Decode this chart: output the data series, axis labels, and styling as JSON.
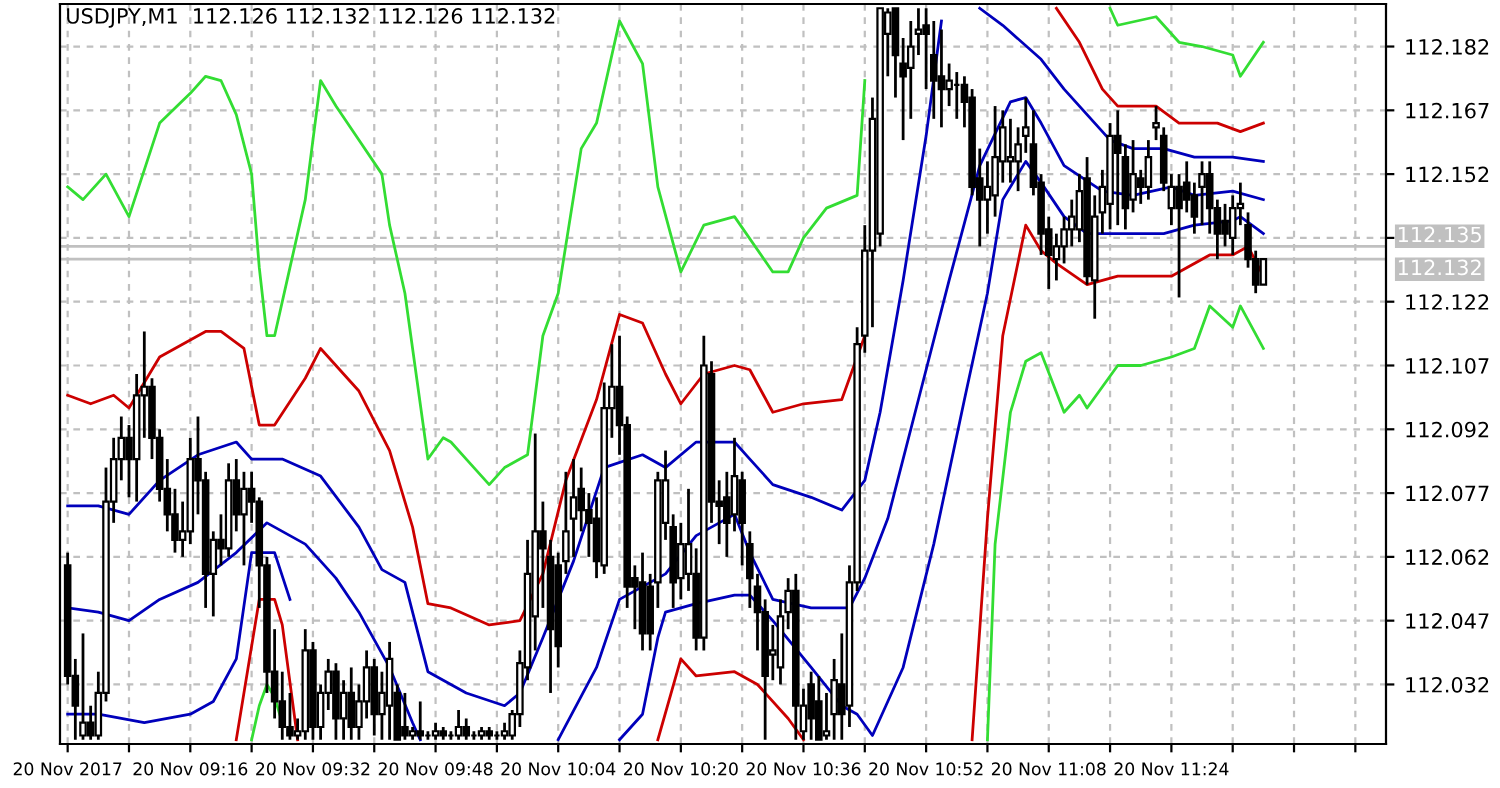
{
  "chart_data": {
    "type": "candlestick",
    "title": "USDJPY,M1  112.126 112.132 112.126 112.132",
    "color": "#000000",
    "x": [
      "2017-11-20T09:00",
      "2017-11-20T09:01",
      "2017-11-20T09:02",
      "2017-11-20T09:03",
      "2017-11-20T09:04",
      "2017-11-20T09:05",
      "2017-11-20T09:06",
      "2017-11-20T09:07",
      "2017-11-20T09:08",
      "2017-11-20T09:09",
      "2017-11-20T09:10",
      "2017-11-20T09:11",
      "2017-11-20T09:12",
      "2017-11-20T09:13",
      "2017-11-20T09:14",
      "2017-11-20T09:15",
      "2017-11-20T09:16",
      "2017-11-20T09:17",
      "2017-11-20T09:18",
      "2017-11-20T09:19",
      "2017-11-20T09:20",
      "2017-11-20T09:21",
      "2017-11-20T09:22",
      "2017-11-20T09:23",
      "2017-11-20T09:24",
      "2017-11-20T09:25",
      "2017-11-20T09:26",
      "2017-11-20T09:27",
      "2017-11-20T09:28",
      "2017-11-20T09:29",
      "2017-11-20T09:30",
      "2017-11-20T09:31",
      "2017-11-20T09:32",
      "2017-11-20T09:33",
      "2017-11-20T09:34",
      "2017-11-20T09:35",
      "2017-11-20T09:36",
      "2017-11-20T09:37",
      "2017-11-20T09:38",
      "2017-11-20T09:39",
      "2017-11-20T09:40",
      "2017-11-20T09:41",
      "2017-11-20T09:42",
      "2017-11-20T09:43",
      "2017-11-20T09:44",
      "2017-11-20T09:45",
      "2017-11-20T09:46",
      "2017-11-20T09:47",
      "2017-11-20T09:48",
      "2017-11-20T09:49",
      "2017-11-20T09:50",
      "2017-11-20T09:51",
      "2017-11-20T09:52",
      "2017-11-20T09:53",
      "2017-11-20T09:54",
      "2017-11-20T09:55",
      "2017-11-20T09:56",
      "2017-11-20T09:57",
      "2017-11-20T09:58",
      "2017-11-20T09:59",
      "2017-11-20T10:00",
      "2017-11-20T10:01",
      "2017-11-20T10:02",
      "2017-11-20T10:03",
      "2017-11-20T10:04",
      "2017-11-20T10:05",
      "2017-11-20T10:06",
      "2017-11-20T10:07",
      "2017-11-20T10:08",
      "2017-11-20T10:09",
      "2017-11-20T10:10",
      "2017-11-20T10:11",
      "2017-11-20T10:12",
      "2017-11-20T10:13",
      "2017-11-20T10:14",
      "2017-11-20T10:15",
      "2017-11-20T10:16",
      "2017-11-20T10:17",
      "2017-11-20T10:18",
      "2017-11-20T10:19",
      "2017-11-20T10:20",
      "2017-11-20T10:21",
      "2017-11-20T10:22",
      "2017-11-20T10:23",
      "2017-11-20T10:24",
      "2017-11-20T10:25",
      "2017-11-20T10:26",
      "2017-11-20T10:27",
      "2017-11-20T10:28",
      "2017-11-20T10:29",
      "2017-11-20T10:30",
      "2017-11-20T10:31",
      "2017-11-20T10:32",
      "2017-11-20T10:33",
      "2017-11-20T10:34",
      "2017-11-20T10:35",
      "2017-11-20T10:36",
      "2017-11-20T10:37",
      "2017-11-20T10:38",
      "2017-11-20T10:39",
      "2017-11-20T10:40",
      "2017-11-20T10:41",
      "2017-11-20T10:42",
      "2017-11-20T10:43",
      "2017-11-20T10:44",
      "2017-11-20T10:45",
      "2017-11-20T10:46",
      "2017-11-20T10:47",
      "2017-11-20T10:48",
      "2017-11-20T10:49",
      "2017-11-20T10:50",
      "2017-11-20T10:51",
      "2017-11-20T10:52",
      "2017-11-20T10:53",
      "2017-11-20T10:54",
      "2017-11-20T10:55",
      "2017-11-20T10:56",
      "2017-11-20T10:57",
      "2017-11-20T10:58",
      "2017-11-20T10:59",
      "2017-11-20T11:00",
      "2017-11-20T11:01",
      "2017-11-20T11:02",
      "2017-11-20T11:03",
      "2017-11-20T11:04",
      "2017-11-20T11:05",
      "2017-11-20T11:06",
      "2017-11-20T11:07",
      "2017-11-20T11:08",
      "2017-11-20T11:09",
      "2017-11-20T11:10",
      "2017-11-20T11:11",
      "2017-11-20T11:12",
      "2017-11-20T11:13",
      "2017-11-20T11:14",
      "2017-11-20T11:15",
      "2017-11-20T11:16",
      "2017-11-20T11:17",
      "2017-11-20T11:18",
      "2017-11-20T11:19",
      "2017-11-20T11:20",
      "2017-11-20T11:21",
      "2017-11-20T11:22",
      "2017-11-20T11:23",
      "2017-11-20T11:24",
      "2017-11-20T11:25",
      "2017-11-20T11:26",
      "2017-11-20T11:27",
      "2017-11-20T11:28",
      "2017-11-20T11:29",
      "2017-11-20T11:30",
      "2017-11-20T11:31",
      "2017-11-20T11:32",
      "2017-11-20T11:33",
      "2017-11-20T11:34",
      "2017-11-20T11:35",
      "2017-11-20T11:36"
    ],
    "ohlc": [
      [
        112.06,
        112.063,
        112.032,
        112.034
      ],
      [
        112.034,
        112.038,
        112.019,
        112.027
      ],
      [
        112.02,
        112.044,
        112.019,
        112.023
      ],
      [
        112.023,
        112.027,
        112.019,
        112.02
      ],
      [
        112.02,
        112.035,
        112.019,
        112.03
      ],
      [
        112.03,
        112.083,
        112.028,
        112.075
      ],
      [
        112.075,
        112.09,
        112.07,
        112.085
      ],
      [
        112.085,
        112.095,
        112.08,
        112.09
      ],
      [
        112.09,
        112.093,
        112.076,
        112.085
      ],
      [
        112.085,
        112.105,
        112.075,
        112.1
      ],
      [
        112.1,
        112.115,
        112.09,
        112.102
      ],
      [
        112.102,
        112.104,
        112.085,
        112.09
      ],
      [
        112.09,
        112.092,
        112.075,
        112.078
      ],
      [
        112.078,
        112.085,
        112.068,
        112.072
      ],
      [
        112.072,
        112.078,
        112.063,
        112.066
      ],
      [
        112.066,
        112.075,
        112.062,
        112.068
      ],
      [
        112.068,
        112.09,
        112.065,
        112.085
      ],
      [
        112.085,
        112.095,
        112.072,
        112.08
      ],
      [
        112.08,
        112.082,
        112.05,
        112.058
      ],
      [
        112.058,
        112.068,
        112.048,
        112.066
      ],
      [
        112.066,
        112.072,
        112.06,
        112.064
      ],
      [
        112.064,
        112.084,
        112.062,
        112.08
      ],
      [
        112.08,
        112.085,
        112.068,
        112.072
      ],
      [
        112.072,
        112.082,
        112.06,
        112.078
      ],
      [
        112.078,
        112.082,
        112.07,
        112.075
      ],
      [
        112.075,
        112.076,
        112.05,
        112.06
      ],
      [
        112.06,
        112.062,
        112.03,
        112.035
      ],
      [
        112.035,
        112.045,
        112.024,
        112.028
      ],
      [
        112.028,
        112.035,
        112.019,
        112.022
      ],
      [
        112.022,
        112.03,
        112.019,
        112.02
      ],
      [
        112.02,
        112.024,
        112.019,
        112.021
      ],
      [
        112.021,
        112.045,
        112.019,
        112.04
      ],
      [
        112.04,
        112.042,
        112.019,
        112.022
      ],
      [
        112.022,
        112.032,
        112.019,
        112.03
      ],
      [
        112.03,
        112.038,
        112.026,
        112.035
      ],
      [
        112.035,
        112.037,
        112.019,
        112.024
      ],
      [
        112.024,
        112.033,
        112.019,
        112.03
      ],
      [
        112.03,
        112.036,
        112.019,
        112.022
      ],
      [
        112.022,
        112.032,
        112.019,
        112.028
      ],
      [
        112.028,
        112.04,
        112.024,
        112.036
      ],
      [
        112.036,
        112.038,
        112.02,
        112.025
      ],
      [
        112.025,
        112.035,
        112.019,
        112.03
      ],
      [
        112.027,
        112.042,
        112.019,
        112.038
      ],
      [
        112.03,
        112.032,
        112.019,
        112.019
      ],
      [
        112.022,
        112.03,
        112.019,
        112.02
      ],
      [
        112.02,
        112.022,
        112.019,
        112.021
      ],
      [
        112.021,
        112.028,
        112.019,
        112.02
      ],
      [
        112.02,
        112.021,
        112.019,
        112.02
      ],
      [
        112.02,
        112.023,
        112.019,
        112.021
      ],
      [
        112.021,
        112.022,
        112.019,
        112.02
      ],
      [
        112.02,
        112.021,
        112.019,
        112.02
      ],
      [
        112.02,
        112.026,
        112.019,
        112.022
      ],
      [
        112.022,
        112.024,
        112.019,
        112.02
      ],
      [
        112.02,
        112.021,
        112.019,
        112.02
      ],
      [
        112.02,
        112.022,
        112.019,
        112.021
      ],
      [
        112.021,
        112.022,
        112.019,
        112.02
      ],
      [
        112.02,
        112.021,
        112.019,
        112.02
      ],
      [
        112.02,
        112.023,
        112.019,
        112.021
      ],
      [
        112.02,
        112.026,
        112.019,
        112.025
      ],
      [
        112.025,
        112.04,
        112.022,
        112.037
      ],
      [
        112.036,
        112.066,
        112.033,
        112.058
      ],
      [
        112.048,
        112.091,
        112.04,
        112.068
      ],
      [
        112.068,
        112.075,
        112.05,
        112.064
      ],
      [
        112.062,
        112.066,
        112.03,
        112.045
      ],
      [
        112.06,
        112.063,
        112.036,
        112.041
      ],
      [
        112.061,
        112.082,
        112.058,
        112.068
      ],
      [
        112.071,
        112.085,
        112.062,
        112.076
      ],
      [
        112.078,
        112.083,
        112.068,
        112.073
      ],
      [
        112.073,
        112.077,
        112.062,
        112.07
      ],
      [
        112.071,
        112.076,
        112.057,
        112.061
      ],
      [
        112.06,
        112.103,
        112.058,
        112.097
      ],
      [
        112.097,
        112.112,
        112.09,
        112.102
      ],
      [
        112.102,
        112.114,
        112.086,
        112.093
      ],
      [
        112.093,
        112.095,
        112.05,
        112.055
      ],
      [
        112.057,
        112.06,
        112.045,
        112.055
      ],
      [
        112.056,
        112.063,
        112.04,
        112.044
      ],
      [
        112.055,
        112.058,
        112.04,
        112.044
      ],
      [
        112.056,
        112.082,
        112.05,
        112.08
      ],
      [
        112.07,
        112.087,
        112.066,
        112.08
      ],
      [
        112.069,
        112.072,
        112.05,
        112.056
      ],
      [
        112.057,
        112.07,
        112.052,
        112.065
      ],
      [
        112.058,
        112.078,
        112.054,
        112.065
      ],
      [
        112.058,
        112.064,
        112.04,
        112.043
      ],
      [
        112.043,
        112.114,
        112.04,
        112.107
      ],
      [
        112.105,
        112.108,
        112.07,
        112.075
      ],
      [
        112.075,
        112.08,
        112.065,
        112.074
      ],
      [
        112.076,
        112.082,
        112.062,
        112.07
      ],
      [
        112.072,
        112.09,
        112.068,
        112.081
      ],
      [
        112.08,
        112.082,
        112.06,
        112.07
      ],
      [
        112.065,
        112.068,
        112.05,
        112.057
      ],
      [
        112.055,
        112.058,
        112.04,
        112.049
      ],
      [
        112.049,
        112.052,
        112.019,
        112.034
      ],
      [
        112.039,
        112.046,
        112.033,
        112.04
      ],
      [
        112.036,
        112.052,
        112.032,
        112.048
      ],
      [
        112.049,
        112.057,
        112.045,
        112.054
      ],
      [
        112.054,
        112.058,
        112.019,
        112.027
      ],
      [
        112.021,
        112.031,
        112.019,
        112.027
      ],
      [
        112.032,
        112.035,
        112.019,
        112.024
      ],
      [
        112.028,
        112.034,
        112.019,
        112.019
      ],
      [
        112.02,
        112.03,
        112.019,
        112.021
      ],
      [
        112.025,
        112.038,
        112.019,
        112.033
      ],
      [
        112.032,
        112.044,
        112.019,
        112.025
      ],
      [
        112.027,
        112.06,
        112.022,
        112.056
      ],
      [
        112.056,
        112.116,
        112.054,
        112.112
      ],
      [
        112.114,
        112.14,
        112.11,
        112.134
      ],
      [
        112.134,
        112.17,
        112.116,
        112.165
      ],
      [
        112.138,
        112.191,
        112.135,
        112.191
      ],
      [
        112.185,
        112.191,
        112.175,
        112.19
      ],
      [
        112.191,
        112.191,
        112.17,
        112.18
      ],
      [
        112.178,
        112.184,
        112.16,
        112.175
      ],
      [
        112.177,
        112.188,
        112.165,
        112.182
      ],
      [
        112.185,
        112.191,
        112.18,
        112.186
      ],
      [
        112.187,
        112.191,
        112.172,
        112.185
      ],
      [
        112.18,
        112.188,
        112.165,
        112.174
      ],
      [
        112.175,
        112.186,
        112.163,
        112.172
      ],
      [
        112.172,
        112.178,
        112.168,
        112.174
      ],
      [
        112.173,
        112.176,
        112.165,
        112.173
      ],
      [
        112.173,
        112.175,
        112.163,
        112.169
      ],
      [
        112.17,
        112.172,
        112.147,
        112.149
      ],
      [
        112.151,
        112.158,
        112.135,
        112.146
      ],
      [
        112.146,
        112.155,
        112.138,
        112.149
      ],
      [
        112.147,
        112.168,
        112.142,
        112.156
      ],
      [
        112.155,
        112.167,
        112.15,
        112.163
      ],
      [
        112.155,
        112.165,
        112.15,
        112.156
      ],
      [
        112.155,
        112.163,
        112.148,
        112.159
      ],
      [
        112.161,
        112.17,
        112.157,
        112.163
      ],
      [
        112.159,
        112.167,
        112.147,
        112.149
      ],
      [
        112.15,
        112.152,
        112.133,
        112.138
      ],
      [
        112.139,
        112.142,
        112.125,
        112.133
      ],
      [
        112.132,
        112.138,
        112.127,
        112.135
      ],
      [
        112.135,
        112.142,
        112.131,
        112.139
      ],
      [
        112.139,
        112.146,
        112.135,
        112.142
      ],
      [
        112.139,
        112.152,
        112.136,
        112.148
      ],
      [
        112.151,
        112.156,
        112.126,
        112.128
      ],
      [
        112.127,
        112.147,
        112.118,
        112.142
      ],
      [
        112.143,
        112.153,
        112.138,
        112.149
      ],
      [
        112.145,
        112.164,
        112.139,
        112.161
      ],
      [
        112.161,
        112.167,
        112.14,
        112.157
      ],
      [
        112.156,
        112.159,
        112.139,
        112.144
      ],
      [
        112.146,
        112.16,
        112.143,
        112.152
      ],
      [
        112.151,
        112.153,
        112.145,
        112.149
      ],
      [
        112.149,
        112.16,
        112.146,
        112.156
      ],
      [
        112.163,
        112.168,
        112.16,
        112.164
      ],
      [
        112.161,
        112.163,
        112.148,
        112.15
      ],
      [
        112.144,
        112.152,
        112.14,
        112.149
      ],
      [
        112.149,
        112.152,
        112.123,
        112.144
      ],
      [
        112.15,
        112.155,
        112.143,
        112.146
      ],
      [
        112.147,
        112.15,
        112.138,
        112.142
      ],
      [
        112.149,
        112.155,
        112.14,
        112.152
      ],
      [
        112.152,
        112.155,
        112.138,
        112.144
      ],
      [
        112.144,
        112.146,
        112.132,
        112.138
      ],
      [
        112.141,
        112.145,
        112.135,
        112.138
      ],
      [
        112.137,
        112.147,
        112.133,
        112.144
      ],
      [
        112.144,
        112.15,
        112.14,
        112.145
      ],
      [
        112.14,
        112.143,
        112.13,
        112.132
      ],
      [
        112.132,
        112.134,
        112.124,
        112.126
      ],
      [
        112.126,
        112.132,
        112.126,
        112.132
      ]
    ],
    "series": [
      {
        "type": "line",
        "color": "#33dd33",
        "x": [
          "2017-11-20T09:00",
          "2017-11-20T09:02",
          "2017-11-20T09:05",
          "2017-11-20T09:08",
          "2017-11-20T09:12",
          "2017-11-20T09:16",
          "2017-11-20T09:18",
          "2017-11-20T09:20",
          "2017-11-20T09:22",
          "2017-11-20T09:24",
          "2017-11-20T09:25",
          "2017-11-20T09:26",
          "2017-11-20T09:27",
          "2017-11-20T09:29",
          "2017-11-20T09:31",
          "2017-11-20T09:33",
          "2017-11-20T09:35",
          "2017-11-20T09:38",
          "2017-11-20T09:41",
          "2017-11-20T09:42",
          "2017-11-20T09:44",
          "2017-11-20T09:47",
          "2017-11-20T09:49",
          "2017-11-20T09:50",
          "2017-11-20T09:52",
          "2017-11-20T09:55",
          "2017-11-20T09:57",
          "2017-11-20T10:00",
          "2017-11-20T10:02",
          "2017-11-20T10:04",
          "2017-11-20T10:07",
          "2017-11-20T10:09",
          "2017-11-20T10:12",
          "2017-11-20T10:15",
          "2017-11-20T10:17",
          "2017-11-20T10:20",
          "2017-11-20T10:23",
          "2017-11-20T10:27",
          "2017-11-20T10:32",
          "2017-11-20T10:34",
          "2017-11-20T10:36",
          "2017-11-20T10:39",
          "2017-11-20T10:43",
          "2017-11-20T10:44",
          "2017-11-20T10:54",
          "2017-11-20T11:16",
          "2017-11-20T11:17",
          "2017-11-20T11:22",
          "2017-11-20T11:25",
          "2017-11-20T11:28",
          "2017-11-20T11:32",
          "2017-11-20T11:33",
          "2017-11-20T11:36"
        ],
        "values": [
          112.149,
          112.146,
          112.152,
          112.142,
          112.164,
          112.171,
          112.175,
          112.174,
          112.166,
          112.152,
          112.13,
          112.114,
          112.114,
          112.13,
          112.146,
          112.174,
          112.168,
          112.16,
          112.152,
          112.14,
          112.124,
          112.085,
          112.09,
          112.089,
          112.085,
          112.079,
          112.083,
          112.086,
          112.114,
          112.124,
          112.158,
          112.164,
          112.188,
          112.178,
          112.149,
          112.129,
          112.14,
          112.142,
          112.129,
          112.129,
          112.137,
          112.144,
          112.147,
          112.174,
          null,
          112.191,
          112.187,
          112.189,
          112.183,
          112.182,
          112.18,
          112.175,
          112.183
        ]
      },
      {
        "type": "line",
        "color": "#33dd33",
        "x": [
          "2017-11-20T09:24",
          "2017-11-20T09:25",
          "2017-11-20T09:26",
          "2017-11-20T09:27",
          "2017-11-20T09:28",
          "2017-11-20T10:00",
          "2017-11-20T11:00",
          "2017-11-20T11:01",
          "2017-11-20T11:03",
          "2017-11-20T11:05",
          "2017-11-20T11:07",
          "2017-11-20T11:10",
          "2017-11-20T11:12",
          "2017-11-20T11:13",
          "2017-11-20T11:17",
          "2017-11-20T11:20",
          "2017-11-20T11:24",
          "2017-11-20T11:27",
          "2017-11-20T11:29",
          "2017-11-20T11:32",
          "2017-11-20T11:33",
          "2017-11-20T11:36"
        ],
        "values": [
          112.019,
          112.027,
          112.032,
          112.029,
          112.023,
          null,
          112.019,
          112.065,
          112.096,
          112.108,
          112.11,
          112.096,
          112.1,
          112.097,
          112.107,
          112.107,
          112.109,
          112.111,
          112.121,
          112.116,
          112.121,
          112.111
        ]
      },
      {
        "type": "line",
        "color": "#cc0000",
        "x": [
          "2017-11-20T09:00",
          "2017-11-20T09:03",
          "2017-11-20T09:06",
          "2017-11-20T09:08",
          "2017-11-20T09:12",
          "2017-11-20T09:18",
          "2017-11-20T09:20",
          "2017-11-20T09:23",
          "2017-11-20T09:25",
          "2017-11-20T09:27",
          "2017-11-20T09:31",
          "2017-11-20T09:33",
          "2017-11-20T09:38",
          "2017-11-20T09:42",
          "2017-11-20T09:45",
          "2017-11-20T09:47",
          "2017-11-20T09:50",
          "2017-11-20T09:55",
          "2017-11-20T09:59",
          "2017-11-20T10:02",
          "2017-11-20T10:05",
          "2017-11-20T10:09",
          "2017-11-20T10:12",
          "2017-11-20T10:15",
          "2017-11-20T10:18",
          "2017-11-20T10:20",
          "2017-11-20T10:23",
          "2017-11-20T10:27",
          "2017-11-20T10:29",
          "2017-11-20T10:32",
          "2017-11-20T10:36",
          "2017-11-20T10:41",
          "2017-11-20T10:44",
          "2017-11-20T10:45",
          "2017-11-20T10:46",
          "2017-11-20T10:55",
          "2017-11-20T11:09",
          "2017-11-20T11:12",
          "2017-11-20T11:15",
          "2017-11-20T11:17",
          "2017-11-20T11:22",
          "2017-11-20T11:25",
          "2017-11-20T11:30",
          "2017-11-20T11:33",
          "2017-11-20T11:36"
        ],
        "values": [
          112.1,
          112.098,
          112.1,
          112.097,
          112.109,
          112.115,
          112.115,
          112.111,
          112.093,
          112.093,
          112.104,
          112.111,
          112.101,
          112.087,
          112.069,
          112.051,
          112.05,
          112.046,
          112.047,
          112.058,
          112.08,
          112.099,
          112.119,
          112.117,
          112.105,
          112.098,
          112.105,
          112.107,
          112.106,
          112.096,
          112.098,
          112.099,
          112.114,
          null,
          null,
          null,
          112.191,
          112.183,
          112.172,
          112.168,
          112.168,
          112.164,
          112.164,
          112.162,
          112.164
        ]
      },
      {
        "type": "line",
        "color": "#cc0000",
        "x": [
          "2017-11-20T09:22",
          "2017-11-20T09:25",
          "2017-11-20T09:27",
          "2017-11-20T09:28",
          "2017-11-20T09:30",
          "2017-11-20T09:45",
          "2017-11-20T10:17",
          "2017-11-20T10:20",
          "2017-11-20T10:22",
          "2017-11-20T10:27",
          "2017-11-20T10:30",
          "2017-11-20T10:34",
          "2017-11-20T10:36",
          "2017-11-20T10:50",
          "2017-11-20T10:58",
          "2017-11-20T11:00",
          "2017-11-20T11:02",
          "2017-11-20T11:05",
          "2017-11-20T11:07",
          "2017-11-20T11:09",
          "2017-11-20T11:13",
          "2017-11-20T11:17",
          "2017-11-20T11:24",
          "2017-11-20T11:29",
          "2017-11-20T11:32",
          "2017-11-20T11:34",
          "2017-11-20T11:36"
        ],
        "values": [
          112.019,
          112.052,
          112.052,
          112.046,
          112.019,
          null,
          112.019,
          112.038,
          112.034,
          112.035,
          112.032,
          112.024,
          112.019,
          null,
          112.019,
          112.071,
          112.114,
          112.14,
          112.134,
          112.131,
          112.126,
          112.128,
          112.128,
          112.133,
          112.133,
          112.135,
          112.128
        ]
      },
      {
        "type": "line",
        "color": "#0000bb",
        "x": [
          "2017-11-20T09:00",
          "2017-11-20T09:04",
          "2017-11-20T09:08",
          "2017-11-20T09:12",
          "2017-11-20T09:17",
          "2017-11-20T09:22",
          "2017-11-20T09:24",
          "2017-11-20T09:28",
          "2017-11-20T09:33",
          "2017-11-20T09:38",
          "2017-11-20T09:41",
          "2017-11-20T09:44",
          "2017-11-20T09:47",
          "2017-11-20T09:52",
          "2017-11-20T09:57",
          "2017-11-20T09:59",
          "2017-11-20T10:02",
          "2017-11-20T10:06",
          "2017-11-20T10:10",
          "2017-11-20T10:15",
          "2017-11-20T10:18",
          "2017-11-20T10:22",
          "2017-11-20T10:27",
          "2017-11-20T10:29",
          "2017-11-20T10:32",
          "2017-11-20T10:37",
          "2017-11-20T10:41",
          "2017-11-20T10:44",
          "2017-11-20T10:46",
          "2017-11-20T10:49",
          "2017-11-20T10:52",
          "2017-11-20T10:54",
          "2017-11-20T10:56",
          "2017-11-20T10:59",
          "2017-11-20T11:02",
          "2017-11-20T11:07",
          "2017-11-20T11:10",
          "2017-11-20T11:12",
          "2017-11-20T11:16",
          "2017-11-20T11:19",
          "2017-11-20T11:23",
          "2017-11-20T11:27",
          "2017-11-20T11:32",
          "2017-11-20T11:36"
        ],
        "values": [
          112.074,
          112.074,
          112.072,
          112.08,
          112.086,
          112.089,
          112.085,
          112.085,
          112.081,
          112.069,
          112.059,
          112.056,
          112.035,
          112.03,
          112.027,
          112.03,
          112.043,
          112.061,
          112.083,
          112.086,
          112.083,
          112.089,
          112.089,
          112.085,
          112.079,
          112.076,
          112.073,
          112.08,
          112.096,
          112.127,
          112.161,
          112.188,
          null,
          112.191,
          112.187,
          112.179,
          112.172,
          112.168,
          112.16,
          112.158,
          112.158,
          112.156,
          112.156,
          112.155
        ]
      },
      {
        "type": "line",
        "color": "#0000bb",
        "x": [
          "2017-11-20T09:00",
          "2017-11-20T09:04",
          "2017-11-20T09:08",
          "2017-11-20T09:12",
          "2017-11-20T09:17",
          "2017-11-20T09:22",
          "2017-11-20T09:26",
          "2017-11-20T09:31",
          "2017-11-20T09:35",
          "2017-11-20T09:38",
          "2017-11-20T09:42",
          "2017-11-20T09:45",
          "2017-11-20T09:46",
          "2017-11-20T10:00",
          "2017-11-20T10:04",
          "2017-11-20T10:09",
          "2017-11-20T10:12",
          "2017-11-20T10:15",
          "2017-11-20T10:18",
          "2017-11-20T10:22",
          "2017-11-20T10:27",
          "2017-11-20T10:29",
          "2017-11-20T10:32",
          "2017-11-20T10:37",
          "2017-11-20T10:42",
          "2017-11-20T10:44",
          "2017-11-20T10:47",
          "2017-11-20T10:51",
          "2017-11-20T10:55",
          "2017-11-20T10:59",
          "2017-11-20T11:03",
          "2017-11-20T11:05",
          "2017-11-20T11:07",
          "2017-11-20T11:10",
          "2017-11-20T11:15",
          "2017-11-20T11:19",
          "2017-11-20T11:24",
          "2017-11-20T11:27",
          "2017-11-20T11:32",
          "2017-11-20T11:36"
        ],
        "values": [
          112.05,
          112.049,
          112.047,
          112.052,
          112.056,
          112.063,
          112.07,
          112.065,
          112.057,
          112.049,
          112.036,
          112.023,
          112.019,
          null,
          112.019,
          112.036,
          112.052,
          112.055,
          112.058,
          112.067,
          112.072,
          112.063,
          112.052,
          112.05,
          112.05,
          112.057,
          112.071,
          112.099,
          112.127,
          112.154,
          112.169,
          112.17,
          112.164,
          112.154,
          112.148,
          112.147,
          112.149,
          112.147,
          112.148,
          112.146
        ]
      },
      {
        "type": "line",
        "color": "#0000bb",
        "x": [
          "2017-11-20T09:00",
          "2017-11-20T09:04",
          "2017-11-20T09:10",
          "2017-11-20T09:16",
          "2017-11-20T09:19",
          "2017-11-20T09:22",
          "2017-11-20T09:24",
          "2017-11-20T09:27",
          "2017-11-20T09:29",
          "2017-11-20T09:31",
          "2017-11-20T09:32",
          "2017-11-20T09:54",
          "2017-11-20T10:12",
          "2017-11-20T10:15",
          "2017-11-20T10:17",
          "2017-11-20T10:18",
          "2017-11-20T10:22",
          "2017-11-20T10:27",
          "2017-11-20T10:29",
          "2017-11-20T10:32",
          "2017-11-20T10:37",
          "2017-11-20T10:41",
          "2017-11-20T10:43",
          "2017-11-20T10:45",
          "2017-11-20T10:49",
          "2017-11-20T10:53",
          "2017-11-20T10:57",
          "2017-11-20T11:00",
          "2017-11-20T11:02",
          "2017-11-20T11:05",
          "2017-11-20T11:07",
          "2017-11-20T11:10",
          "2017-11-20T11:13",
          "2017-11-20T11:23",
          "2017-11-20T11:27",
          "2017-11-20T11:32",
          "2017-11-20T11:33",
          "2017-11-20T11:36"
        ],
        "values": [
          112.025,
          112.025,
          112.023,
          112.025,
          112.028,
          112.038,
          112.063,
          112.063,
          112.052,
          null,
          null,
          null,
          112.019,
          112.025,
          112.043,
          112.049,
          112.051,
          112.053,
          112.053,
          112.047,
          112.036,
          112.027,
          112.025,
          112.02,
          112.036,
          112.065,
          112.099,
          112.124,
          112.146,
          112.155,
          112.15,
          112.142,
          112.138,
          112.138,
          112.14,
          112.141,
          112.142,
          112.138
        ]
      }
    ],
    "ref_lines": [
      {
        "axis": "y",
        "value": 112.135,
        "label": "112.135",
        "color": "#c0c0c0"
      },
      {
        "axis": "y",
        "value": 112.132,
        "label": "112.132",
        "color": "#c0c0c0"
      }
    ],
    "xlim": [
      "2017-11-20T08:59",
      "2017-11-20T11:52"
    ],
    "ylim": [
      112.018,
      112.192
    ],
    "xticks": [
      {
        "value": "2017-11-20T09:00",
        "label": "20 Nov 2017"
      },
      {
        "value": "2017-11-20T09:08",
        "label": null
      },
      {
        "value": "2017-11-20T09:16",
        "label": "20 Nov 09:16"
      },
      {
        "value": "2017-11-20T09:24",
        "label": null
      },
      {
        "value": "2017-11-20T09:32",
        "label": "20 Nov 09:32"
      },
      {
        "value": "2017-11-20T09:40",
        "label": null
      },
      {
        "value": "2017-11-20T09:48",
        "label": "20 Nov 09:48"
      },
      {
        "value": "2017-11-20T09:56",
        "label": null
      },
      {
        "value": "2017-11-20T10:04",
        "label": "20 Nov 10:04"
      },
      {
        "value": "2017-11-20T10:12",
        "label": null
      },
      {
        "value": "2017-11-20T10:20",
        "label": "20 Nov 10:20"
      },
      {
        "value": "2017-11-20T10:28",
        "label": null
      },
      {
        "value": "2017-11-20T10:36",
        "label": "20 Nov 10:36"
      },
      {
        "value": "2017-11-20T10:44",
        "label": null
      },
      {
        "value": "2017-11-20T10:52",
        "label": "20 Nov 10:52"
      },
      {
        "value": "2017-11-20T11:00",
        "label": null
      },
      {
        "value": "2017-11-20T11:08",
        "label": "20 Nov 11:08"
      },
      {
        "value": "2017-11-20T11:16",
        "label": null
      },
      {
        "value": "2017-11-20T11:24",
        "label": "20 Nov 11:24"
      },
      {
        "value": "2017-11-20T11:32",
        "label": null
      },
      {
        "value": "2017-11-20T11:40",
        "label": null
      },
      {
        "value": "2017-11-20T11:48",
        "label": null
      }
    ],
    "yticks": [
      112.032,
      112.047,
      112.062,
      112.077,
      112.092,
      112.107,
      112.122,
      {
        "value": 112.137,
        "label": null
      },
      112.152,
      112.167,
      112.182
    ],
    "grid": true,
    "legend": false
  }
}
